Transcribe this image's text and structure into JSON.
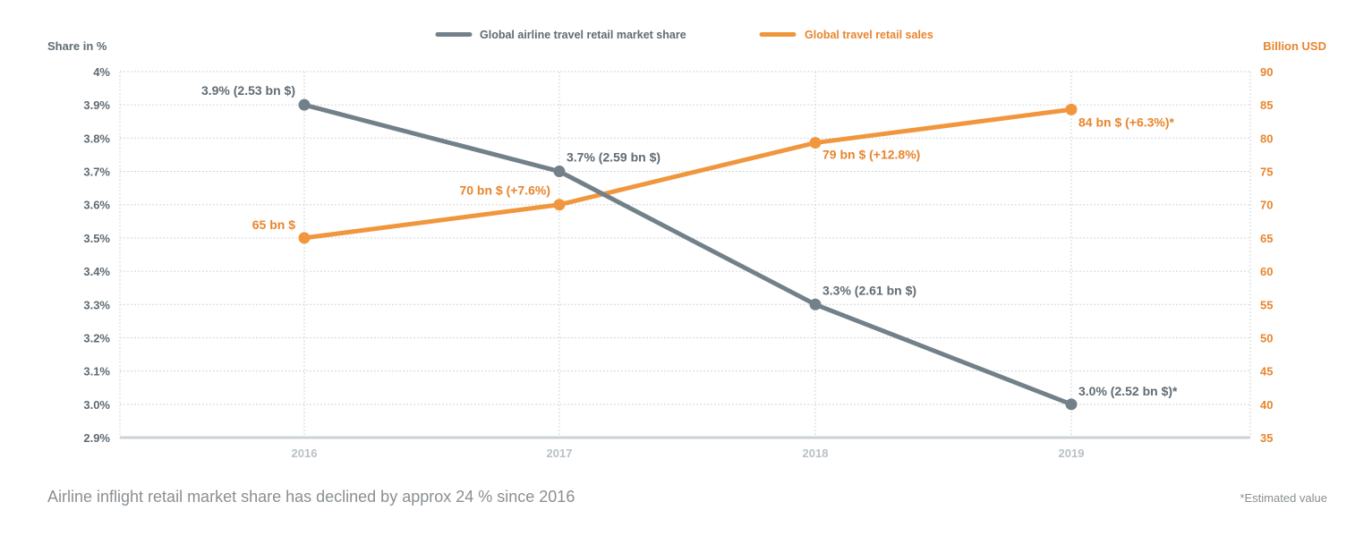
{
  "colors": {
    "share": "#728089",
    "sales": "#f0963c",
    "share_text": "#5f6b73",
    "sales_text": "#e8852e",
    "x_tick": "#b8c1c6",
    "grid": "#cfd6da",
    "baseline": "#c9d3d8"
  },
  "legend": {
    "share": "Global airline travel retail market share",
    "sales": "Global travel retail sales"
  },
  "caption": "Airline inflight retail market share has declined by approx 24 % since 2016",
  "footnote": "*Estimated value",
  "chart_data": {
    "type": "line",
    "categories": [
      "2016",
      "2017",
      "2018",
      "2019"
    ],
    "title": "",
    "xlabel": "",
    "y_left": {
      "label": "Share in %",
      "range": [
        2.9,
        4.0
      ],
      "ticks": [
        "2.9%",
        "3.0%",
        "3.1%",
        "3.2%",
        "3.3%",
        "3.4%",
        "3.5%",
        "3.6%",
        "3.7%",
        "3.8%",
        "3.9%",
        "4%"
      ]
    },
    "y_right": {
      "label": "Billion USD",
      "range": [
        35,
        90
      ],
      "ticks": [
        "35",
        "40",
        "45",
        "50",
        "55",
        "60",
        "65",
        "70",
        "75",
        "80",
        "85",
        "90"
      ]
    },
    "grid": true,
    "legend_position": "top-center",
    "series": [
      {
        "name": "Global airline travel retail market share",
        "axis": "left",
        "values": [
          3.9,
          3.7,
          3.3,
          3.0
        ],
        "labels": [
          "3.9% (2.53 bn $)",
          "3.7% (2.59 bn $)",
          "3.3% (2.61 bn $)",
          "3.0% (2.52 bn $)*"
        ]
      },
      {
        "name": "Global travel retail sales",
        "axis": "right",
        "values": [
          65,
          70,
          79.3,
          84.3
        ],
        "labels": [
          "65 bn $",
          "70 bn $ (+7.6%)",
          "79 bn $ (+12.8%)",
          "84 bn $ (+6.3%)*"
        ]
      }
    ]
  }
}
